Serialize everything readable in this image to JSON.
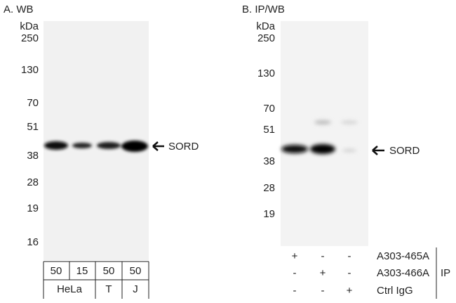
{
  "panel_a": {
    "label": "A. WB",
    "markers": [
      "kDa",
      "250",
      "130",
      "70",
      "51",
      "38",
      "28",
      "19",
      "16"
    ],
    "band_label": "SORD",
    "lane_amounts": [
      "50",
      "15",
      "50",
      "50"
    ],
    "cell_lines": [
      "HeLa",
      "T",
      "J"
    ]
  },
  "panel_b": {
    "label": "B. IP/WB",
    "markers": [
      "kDa",
      "250",
      "130",
      "70",
      "51",
      "38",
      "28",
      "19"
    ],
    "band_label": "SORD",
    "ip_rows": [
      {
        "signs": [
          "+",
          "-",
          "-"
        ],
        "antibody": "A303-465A"
      },
      {
        "signs": [
          "-",
          "+",
          "-"
        ],
        "antibody": "A303-466A"
      },
      {
        "signs": [
          "-",
          "-",
          "+"
        ],
        "antibody": "Ctrl IgG"
      }
    ],
    "ip_label": "IP"
  }
}
